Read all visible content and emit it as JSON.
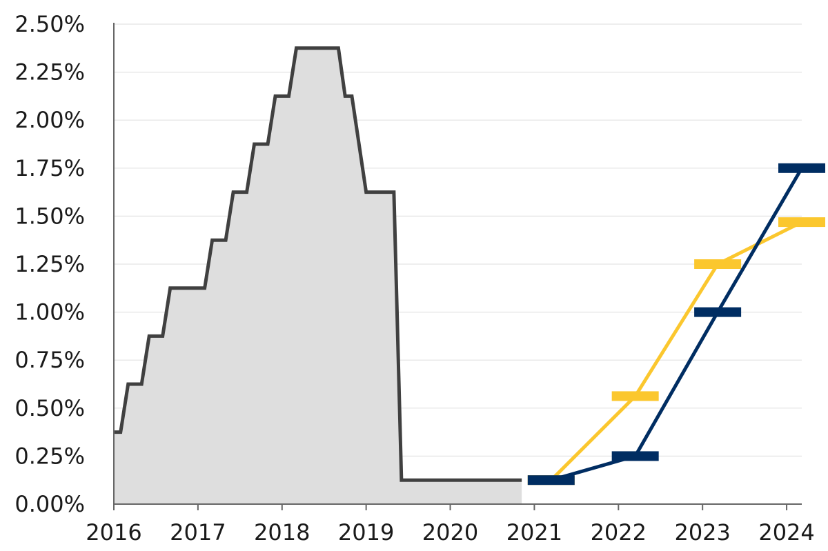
{
  "chart_data": {
    "type": "line",
    "title": "",
    "xlabel": "",
    "ylabel": "",
    "xlim": [
      2016,
      2024.18
    ],
    "ylim": [
      0,
      2.5
    ],
    "x_ticks": [
      "2016",
      "2017",
      "2018",
      "2019",
      "2020",
      "2021",
      "2022",
      "2023",
      "2024"
    ],
    "y_ticks": [
      "2.50%",
      "2.25%",
      "2.00%",
      "1.75%",
      "1.50%",
      "1.25%",
      "1.00%",
      "0.75%",
      "0.50%",
      "0.25%",
      "0.00%"
    ],
    "grid": true,
    "legend": "none",
    "colors": {
      "history_line": "#404040",
      "history_fill": "#dedede",
      "projection_a": "#fbc72e",
      "projection_b": "#002d62",
      "grid": "#e3e3e3",
      "axis": "#666666"
    },
    "series": [
      {
        "kind": "step-area",
        "color": "#404040",
        "fill": "#dedede",
        "points": [
          [
            2016.0,
            0.375
          ],
          [
            2016.08,
            0.375
          ],
          [
            2016.17,
            0.625
          ],
          [
            2016.33,
            0.625
          ],
          [
            2016.42,
            0.875
          ],
          [
            2016.58,
            0.875
          ],
          [
            2016.67,
            1.125
          ],
          [
            2017.08,
            1.125
          ],
          [
            2017.17,
            1.375
          ],
          [
            2017.33,
            1.375
          ],
          [
            2017.42,
            1.625
          ],
          [
            2017.58,
            1.625
          ],
          [
            2017.67,
            1.875
          ],
          [
            2017.83,
            1.875
          ],
          [
            2017.92,
            2.125
          ],
          [
            2018.08,
            2.125
          ],
          [
            2018.17,
            2.375
          ],
          [
            2018.67,
            2.375
          ],
          [
            2018.75,
            2.125
          ],
          [
            2018.83,
            2.125
          ],
          [
            2019.0,
            1.625
          ],
          [
            2019.33,
            1.625
          ],
          [
            2019.42,
            0.125
          ],
          [
            2020.85,
            0.125
          ]
        ]
      },
      {
        "kind": "line-with-markers",
        "color": "#fbc72e",
        "points": [
          [
            2021.2,
            0.125
          ],
          [
            2022.2,
            0.5625
          ],
          [
            2023.18,
            1.25
          ],
          [
            2024.18,
            1.4688
          ]
        ]
      },
      {
        "kind": "line-with-markers",
        "color": "#002d62",
        "points": [
          [
            2021.2,
            0.125
          ],
          [
            2022.2,
            0.25
          ],
          [
            2023.18,
            1.0
          ],
          [
            2024.18,
            1.75
          ]
        ]
      }
    ]
  }
}
